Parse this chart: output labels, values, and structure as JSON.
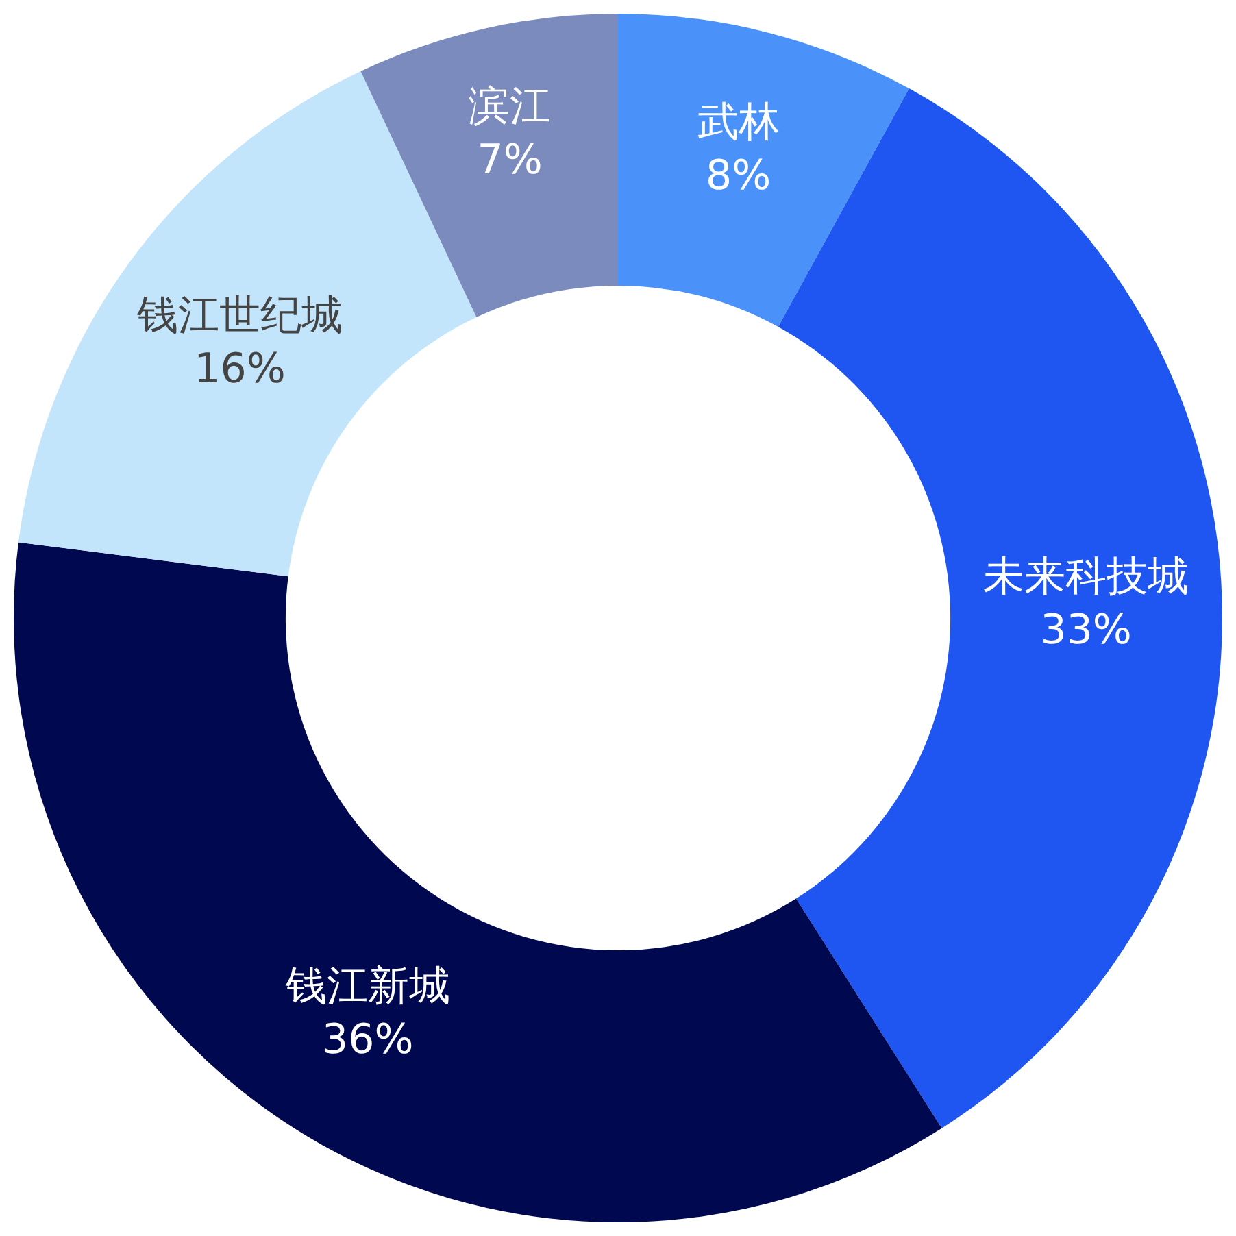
{
  "chart_data": {
    "type": "donut",
    "categories": [
      "武林",
      "未来科技城",
      "钱江新城",
      "钱江世纪城",
      "滨江"
    ],
    "values": [
      8,
      33,
      36,
      16,
      7
    ],
    "value_labels": [
      "8%",
      "33%",
      "36%",
      "16%",
      "7%"
    ],
    "colors": [
      "#4a92fa",
      "#1f55f0",
      "#000850",
      "#c3e5fb",
      "#7b8bbd"
    ],
    "legend": false
  }
}
